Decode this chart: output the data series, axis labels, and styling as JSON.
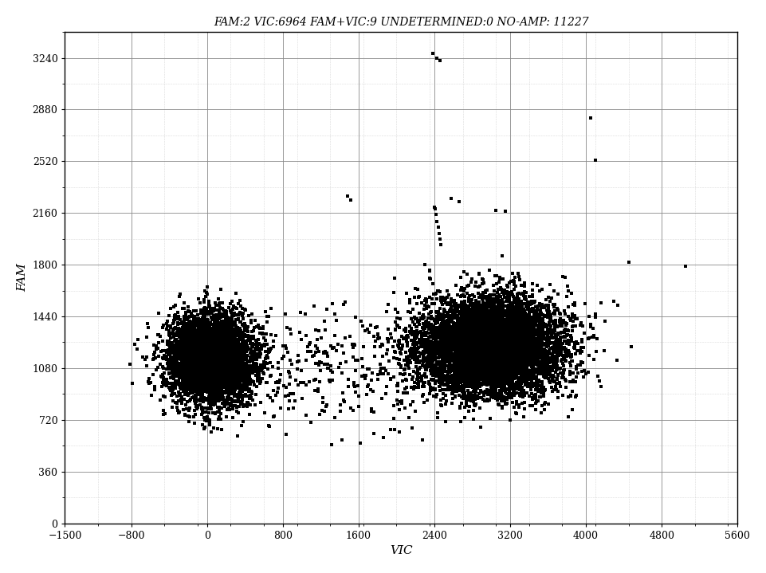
{
  "title": "FAM:2 VIC:6964 FAM+VIC:9 UNDETERMINED:0 NO-AMP: 11227",
  "xlabel": "VIC",
  "ylabel": "FAM",
  "xlim": [
    -1500,
    5600
  ],
  "ylim": [
    0,
    3420
  ],
  "xticks": [
    -1500,
    -800,
    0,
    800,
    1600,
    2400,
    3200,
    4000,
    4800,
    5600
  ],
  "yticks": [
    0,
    360,
    720,
    1080,
    1440,
    1800,
    2160,
    2520,
    2880,
    3240
  ],
  "dot_color": "#000000",
  "dot_size": 6,
  "background_color": "#ffffff",
  "title_fontsize": 10,
  "label_fontsize": 11,
  "cluster1_n": 4500,
  "cluster1_vic_mean": 50,
  "cluster1_vic_std": 230,
  "cluster1_fam_mean": 1150,
  "cluster1_fam_std": 155,
  "cluster2_n": 7200,
  "cluster2_vic_mean": 3000,
  "cluster2_vic_std": 380,
  "cluster2_fam_mean": 1230,
  "cluster2_fam_std": 165,
  "scatter_n": 280,
  "grid_color": "#888888",
  "minor_grid_color": "#bbbbbb"
}
